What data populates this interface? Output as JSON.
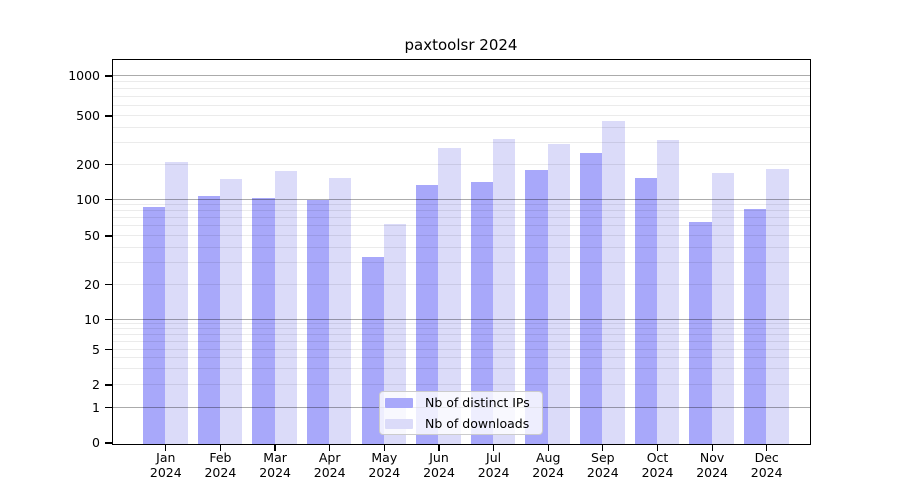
{
  "title": "paxtoolsr 2024",
  "chart_data": {
    "type": "bar",
    "title": "paxtoolsr 2024",
    "categories": [
      "Jan",
      "Feb",
      "Mar",
      "Apr",
      "May",
      "Jun",
      "Jul",
      "Aug",
      "Sep",
      "Oct",
      "Nov",
      "Dec"
    ],
    "category_year": "2024",
    "series": [
      {
        "name": "Nb of distinct IPs",
        "color": "#a8a8fa",
        "values": [
          87,
          108,
          104,
          100,
          34,
          135,
          142,
          180,
          250,
          155,
          66,
          85
        ]
      },
      {
        "name": "Nb of downloads",
        "color": "#dbdbf9",
        "values": [
          210,
          152,
          178,
          155,
          64,
          275,
          325,
          300,
          460,
          320,
          172,
          185
        ]
      }
    ],
    "xlabel": "",
    "ylabel": "",
    "y_ticks": [
      0,
      1,
      2,
      5,
      10,
      20,
      50,
      100,
      200,
      500,
      1000
    ],
    "y_scale": "log-like (log10(1+x)), 0 at baseline",
    "ylim": [
      0,
      1400
    ],
    "grid": true,
    "grid_minor_values": [
      2,
      3,
      4,
      5,
      6,
      7,
      8,
      9,
      20,
      30,
      40,
      50,
      60,
      70,
      80,
      90,
      200,
      300,
      400,
      500,
      600,
      700,
      800,
      900
    ],
    "grid_major_values": [
      1,
      10,
      100,
      1000
    ],
    "legend_position": "lower center",
    "bar_group": "two bars per month, distinct IPs (dark) left, downloads (light) right"
  }
}
